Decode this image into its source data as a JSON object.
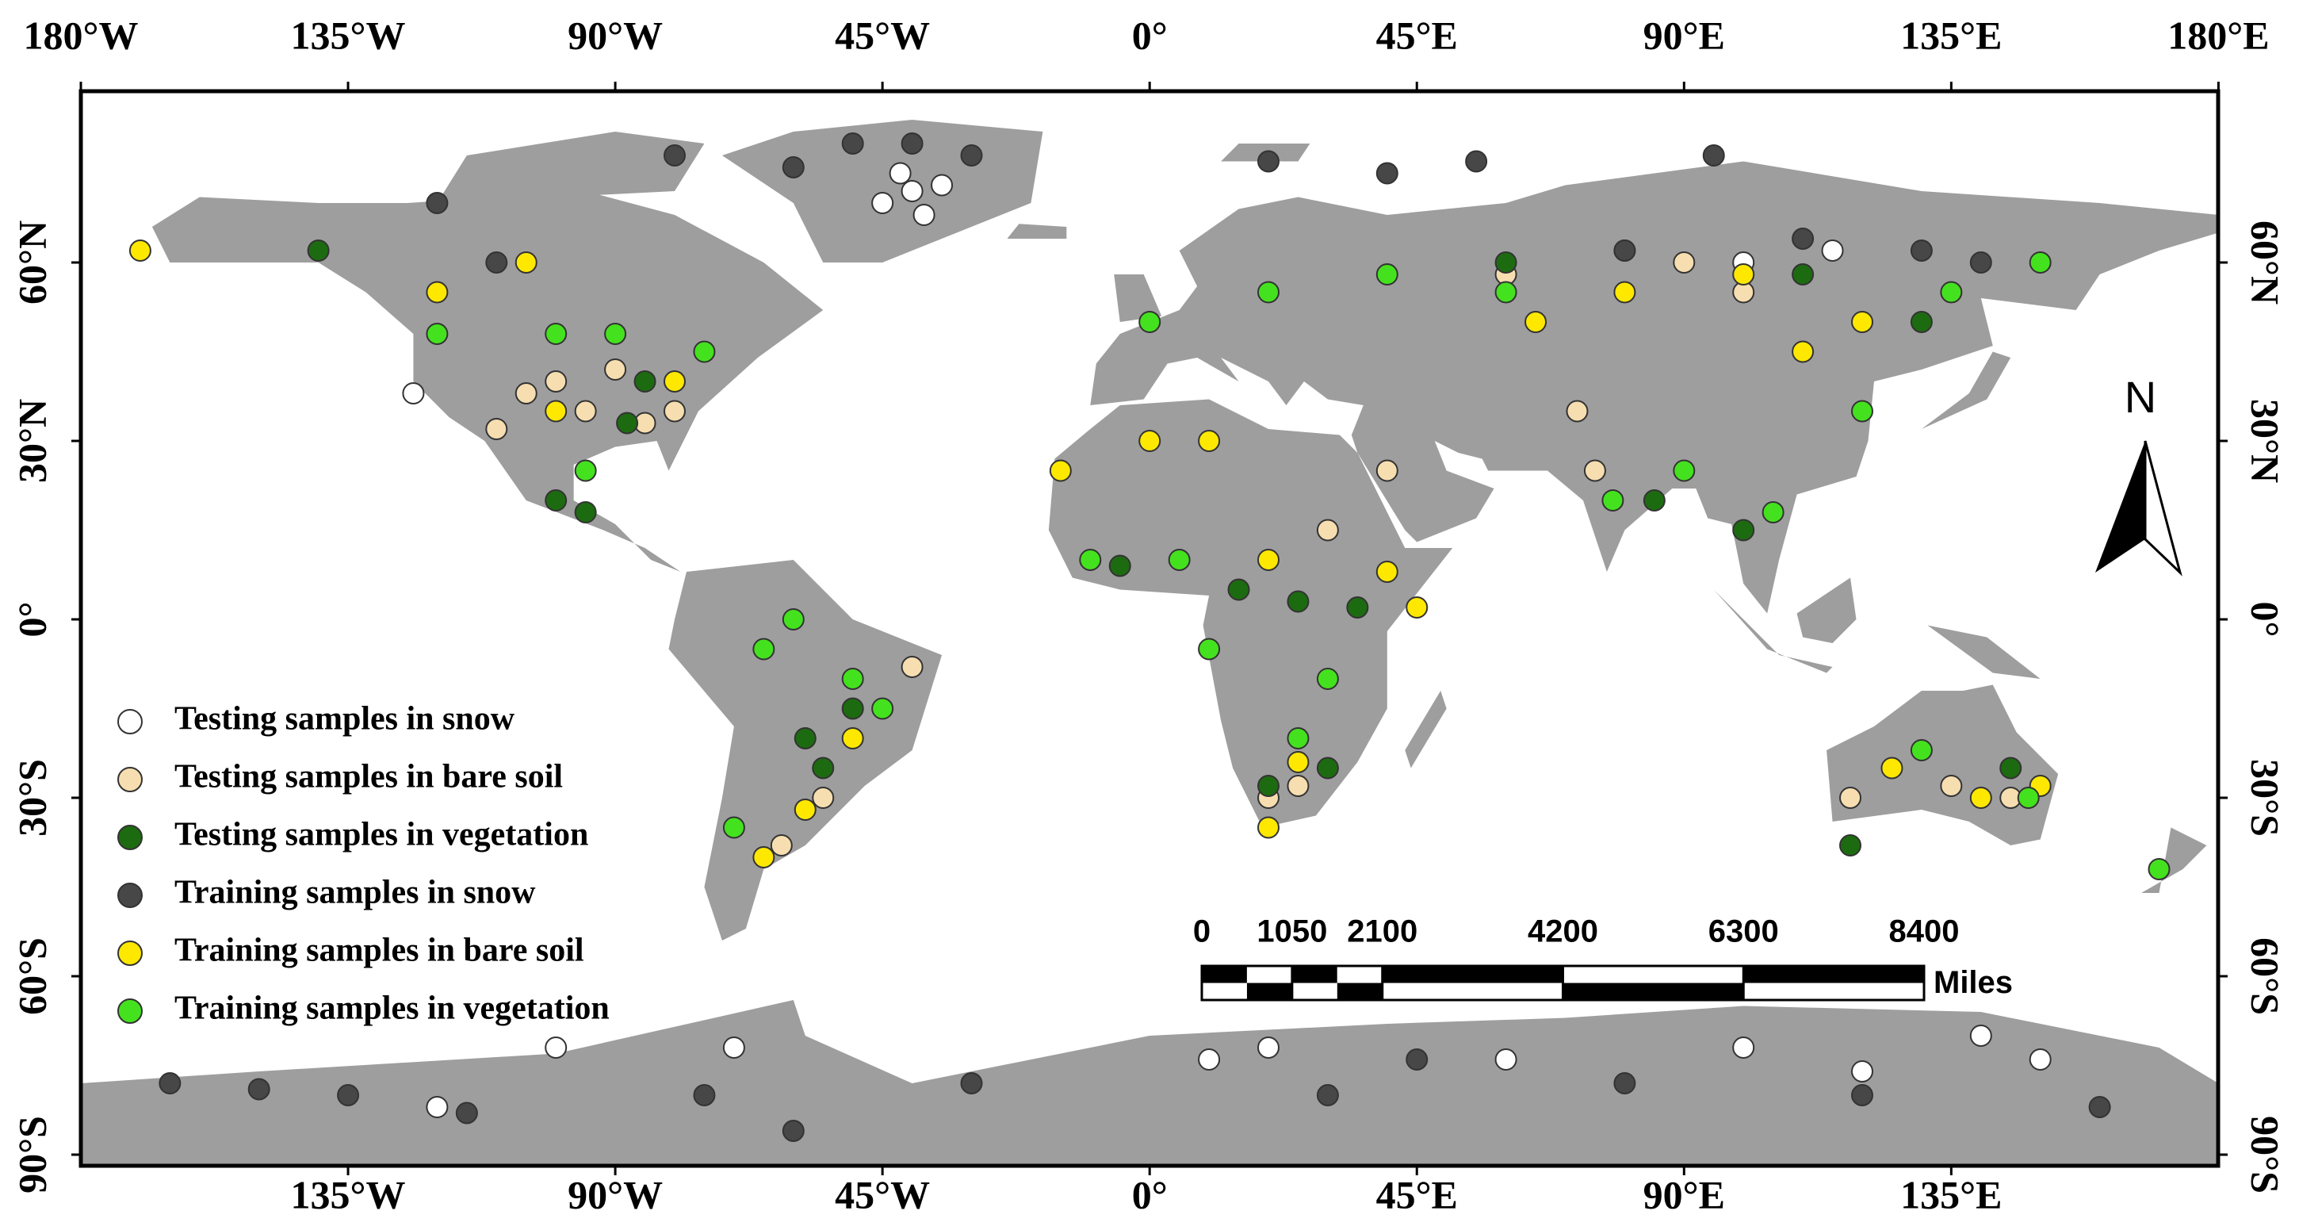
{
  "map": {
    "lon_ticks_top": [
      {
        "value": -180,
        "label": "180°W"
      },
      {
        "value": -135,
        "label": "135°W"
      },
      {
        "value": -90,
        "label": "90°W"
      },
      {
        "value": -45,
        "label": "45°W"
      },
      {
        "value": 0,
        "label": "0°"
      },
      {
        "value": 45,
        "label": "45°E"
      },
      {
        "value": 90,
        "label": "90°E"
      },
      {
        "value": 135,
        "label": "135°E"
      },
      {
        "value": 180,
        "label": "180°E"
      }
    ],
    "lon_ticks_bottom": [
      {
        "value": -135,
        "label": "135°W"
      },
      {
        "value": -90,
        "label": "90°W"
      },
      {
        "value": -45,
        "label": "45°W"
      },
      {
        "value": 0,
        "label": "0°"
      },
      {
        "value": 45,
        "label": "45°E"
      },
      {
        "value": 90,
        "label": "90°E"
      },
      {
        "value": 135,
        "label": "135°E"
      }
    ],
    "lat_ticks": [
      {
        "value": 60,
        "label": "60°N"
      },
      {
        "value": 30,
        "label": "30°N"
      },
      {
        "value": 0,
        "label": "0°"
      },
      {
        "value": -30,
        "label": "30°S"
      },
      {
        "value": -60,
        "label": "60°S"
      },
      {
        "value": -90,
        "label": "90°S"
      }
    ],
    "samples": [
      {
        "name": "Testing samples in snow",
        "color": "#ffffff",
        "points": [
          [
            -40,
            72
          ],
          [
            -45,
            70
          ],
          [
            -35,
            73
          ],
          [
            -42,
            75
          ],
          [
            -38,
            68
          ],
          [
            10,
            -74
          ],
          [
            20,
            -72
          ],
          [
            60,
            -74
          ],
          [
            100,
            -72
          ],
          [
            120,
            -76
          ],
          [
            140,
            -70
          ],
          [
            150,
            -74
          ],
          [
            -100,
            -72
          ],
          [
            -120,
            -82
          ],
          [
            100,
            60
          ],
          [
            115,
            62
          ],
          [
            -70,
            -72
          ],
          [
            -124,
            38
          ]
        ]
      },
      {
        "name": "Testing samples in bare soil",
        "color": "#f7deb0",
        "points": [
          [
            -100,
            40
          ],
          [
            -95,
            35
          ],
          [
            -105,
            38
          ],
          [
            -110,
            32
          ],
          [
            -80,
            35
          ],
          [
            -85,
            33
          ],
          [
            -90,
            42
          ],
          [
            -55,
            -30
          ],
          [
            -40,
            -8
          ],
          [
            -62,
            -38
          ],
          [
            20,
            -30
          ],
          [
            25,
            -28
          ],
          [
            40,
            25
          ],
          [
            30,
            15
          ],
          [
            75,
            25
          ],
          [
            72,
            35
          ],
          [
            118,
            -30
          ],
          [
            135,
            -28
          ],
          [
            145,
            -30
          ],
          [
            100,
            55
          ],
          [
            90,
            60
          ],
          [
            60,
            58
          ]
        ]
      },
      {
        "name": "Testing samples in vegetation",
        "color": "#1d6b10",
        "points": [
          [
            -100,
            20
          ],
          [
            -95,
            18
          ],
          [
            -85,
            40
          ],
          [
            -88,
            33
          ],
          [
            -55,
            -25
          ],
          [
            -58,
            -20
          ],
          [
            -50,
            -15
          ],
          [
            15,
            5
          ],
          [
            25,
            3
          ],
          [
            35,
            2
          ],
          [
            -5,
            9
          ],
          [
            20,
            -28
          ],
          [
            30,
            -25
          ],
          [
            85,
            20
          ],
          [
            100,
            15
          ],
          [
            60,
            60
          ],
          [
            80,
            62
          ],
          [
            110,
            58
          ],
          [
            130,
            50
          ],
          [
            118,
            -38
          ],
          [
            145,
            -25
          ],
          [
            -140,
            62
          ]
        ]
      },
      {
        "name": "Training samples in snow",
        "color": "#474747",
        "points": [
          [
            -120,
            70
          ],
          [
            -80,
            78
          ],
          [
            -60,
            76
          ],
          [
            -50,
            80
          ],
          [
            -40,
            80
          ],
          [
            -30,
            78
          ],
          [
            20,
            77
          ],
          [
            40,
            75
          ],
          [
            55,
            77
          ],
          [
            95,
            78
          ],
          [
            80,
            62
          ],
          [
            110,
            64
          ],
          [
            130,
            62
          ],
          [
            140,
            60
          ],
          [
            -110,
            60
          ],
          [
            -165,
            -78
          ],
          [
            -150,
            -79
          ],
          [
            -135,
            -80
          ],
          [
            -115,
            -83
          ],
          [
            -75,
            -80
          ],
          [
            -60,
            -86
          ],
          [
            -30,
            -78
          ],
          [
            30,
            -80
          ],
          [
            45,
            -74
          ],
          [
            80,
            -78
          ],
          [
            120,
            -80
          ],
          [
            160,
            -82
          ]
        ]
      },
      {
        "name": "Training samples in bare soil",
        "color": "#ffe800",
        "points": [
          [
            -105,
            60
          ],
          [
            -120,
            55
          ],
          [
            -100,
            35
          ],
          [
            -80,
            40
          ],
          [
            -50,
            -20
          ],
          [
            -58,
            -32
          ],
          [
            -65,
            -40
          ],
          [
            -15,
            25
          ],
          [
            0,
            30
          ],
          [
            10,
            30
          ],
          [
            20,
            10
          ],
          [
            45,
            2
          ],
          [
            40,
            8
          ],
          [
            20,
            -35
          ],
          [
            25,
            -24
          ],
          [
            65,
            50
          ],
          [
            80,
            55
          ],
          [
            100,
            58
          ],
          [
            110,
            45
          ],
          [
            120,
            50
          ],
          [
            125,
            -25
          ],
          [
            140,
            -30
          ],
          [
            150,
            -28
          ],
          [
            -170,
            62
          ]
        ]
      },
      {
        "name": "Training samples in vegetation",
        "color": "#44e21e",
        "points": [
          [
            -120,
            48
          ],
          [
            -90,
            48
          ],
          [
            -75,
            45
          ],
          [
            -95,
            25
          ],
          [
            -100,
            48
          ],
          [
            -65,
            -5
          ],
          [
            -50,
            -10
          ],
          [
            -45,
            -15
          ],
          [
            -70,
            -35
          ],
          [
            -60,
            0
          ],
          [
            -10,
            10
          ],
          [
            5,
            10
          ],
          [
            30,
            -10
          ],
          [
            10,
            -5
          ],
          [
            25,
            -20
          ],
          [
            0,
            50
          ],
          [
            20,
            55
          ],
          [
            40,
            58
          ],
          [
            60,
            55
          ],
          [
            78,
            20
          ],
          [
            90,
            25
          ],
          [
            105,
            18
          ],
          [
            120,
            35
          ],
          [
            130,
            -22
          ],
          [
            148,
            -30
          ],
          [
            150,
            60
          ],
          [
            170,
            -42
          ],
          [
            135,
            55
          ]
        ]
      }
    ],
    "scale_bar": {
      "ticks": [
        0,
        1050,
        2100,
        4200,
        6300,
        8400
      ],
      "unit": "Miles"
    },
    "north_label": "N"
  }
}
